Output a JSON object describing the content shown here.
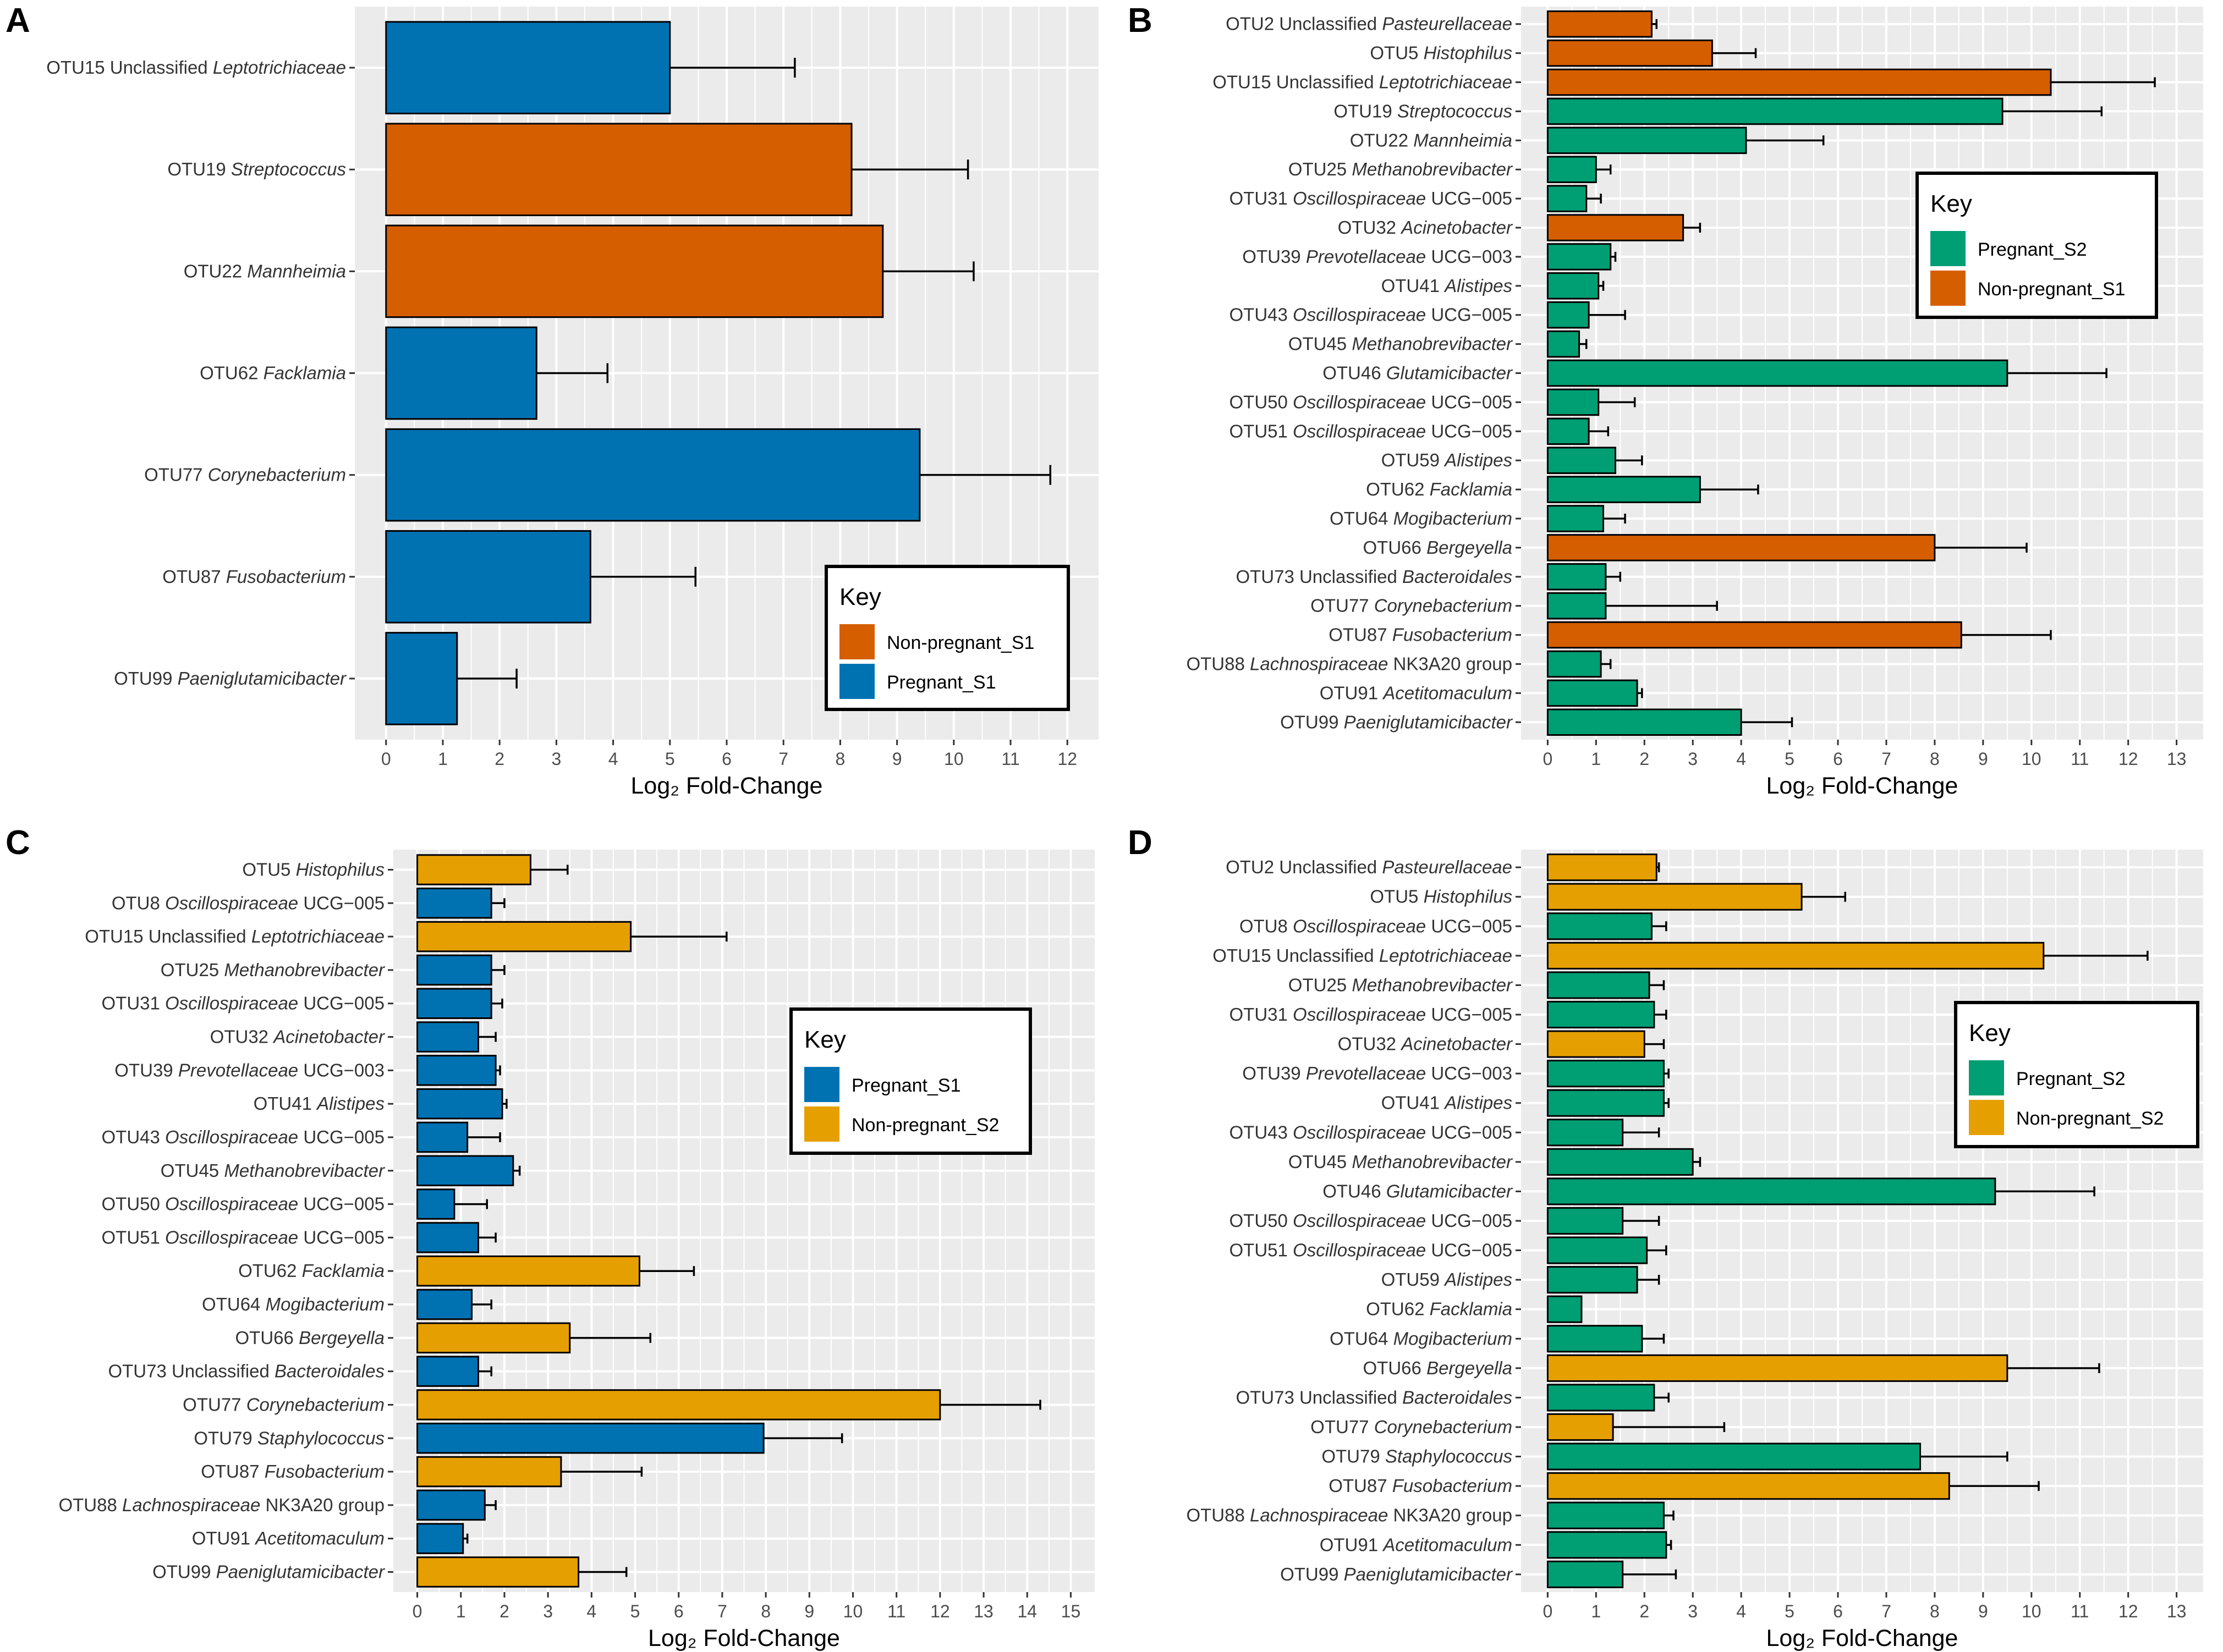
{
  "figure": {
    "xlabel": "Log₂ Fold-Change",
    "legend_title": "Key"
  },
  "colors": {
    "Pregnant_S1": "#0072b2",
    "Non-pregnant_S1": "#d55e00",
    "Pregnant_S2": "#009e73",
    "Non-pregnant_S2": "#e69f00",
    "panel_bg": "#ebebeb",
    "grid": "#ffffff"
  },
  "chart_data": [
    {
      "panel": "A",
      "type": "bar",
      "orientation": "horizontal",
      "title": "",
      "xlabel": "Log₂ Fold-Change",
      "xlim": [
        0,
        12
      ],
      "legend": [
        "Non-pregnant_S1",
        "Pregnant_S1"
      ],
      "legend_position": "lower-right",
      "categories": [
        {
          "otu": "OTU15",
          "prefix": "Unclassified",
          "taxon": "Leptotrichiaceae",
          "suffix": ""
        },
        {
          "otu": "OTU19",
          "prefix": "",
          "taxon": "Streptococcus",
          "suffix": ""
        },
        {
          "otu": "OTU22",
          "prefix": "",
          "taxon": "Mannheimia",
          "suffix": ""
        },
        {
          "otu": "OTU62",
          "prefix": "",
          "taxon": "Facklamia",
          "suffix": ""
        },
        {
          "otu": "OTU77",
          "prefix": "",
          "taxon": "Corynebacterium",
          "suffix": ""
        },
        {
          "otu": "OTU87",
          "prefix": "",
          "taxon": "Fusobacterium",
          "suffix": ""
        },
        {
          "otu": "OTU99",
          "prefix": "",
          "taxon": "Paeniglutamicibacter",
          "suffix": ""
        }
      ],
      "values": [
        5.0,
        8.2,
        8.75,
        2.65,
        9.4,
        3.6,
        1.25
      ],
      "errors": [
        2.2,
        2.05,
        1.6,
        1.25,
        2.3,
        1.85,
        1.05
      ],
      "groups": [
        "Pregnant_S1",
        "Non-pregnant_S1",
        "Non-pregnant_S1",
        "Pregnant_S1",
        "Pregnant_S1",
        "Pregnant_S1",
        "Pregnant_S1"
      ]
    },
    {
      "panel": "B",
      "type": "bar",
      "orientation": "horizontal",
      "title": "",
      "xlabel": "Log₂ Fold-Change",
      "xlim": [
        0,
        13
      ],
      "legend": [
        "Pregnant_S2",
        "Non-pregnant_S1"
      ],
      "legend_position": "middle-right",
      "categories": [
        {
          "otu": "OTU2",
          "prefix": "Unclassified",
          "taxon": "Pasteurellaceae",
          "suffix": ""
        },
        {
          "otu": "OTU5",
          "prefix": "",
          "taxon": "Histophilus",
          "suffix": ""
        },
        {
          "otu": "OTU15",
          "prefix": "Unclassified",
          "taxon": "Leptotrichiaceae",
          "suffix": ""
        },
        {
          "otu": "OTU19",
          "prefix": "",
          "taxon": "Streptococcus",
          "suffix": ""
        },
        {
          "otu": "OTU22",
          "prefix": "",
          "taxon": "Mannheimia",
          "suffix": ""
        },
        {
          "otu": "OTU25",
          "prefix": "",
          "taxon": "Methanobrevibacter",
          "suffix": ""
        },
        {
          "otu": "OTU31",
          "prefix": "",
          "taxon": "Oscillospiraceae",
          "suffix": "UCG−005"
        },
        {
          "otu": "OTU32",
          "prefix": "",
          "taxon": "Acinetobacter",
          "suffix": ""
        },
        {
          "otu": "OTU39",
          "prefix": "",
          "taxon": "Prevotellaceae",
          "suffix": "UCG−003"
        },
        {
          "otu": "OTU41",
          "prefix": "",
          "taxon": "Alistipes",
          "suffix": ""
        },
        {
          "otu": "OTU43",
          "prefix": "",
          "taxon": "Oscillospiraceae",
          "suffix": "UCG−005"
        },
        {
          "otu": "OTU45",
          "prefix": "",
          "taxon": "Methanobrevibacter",
          "suffix": ""
        },
        {
          "otu": "OTU46",
          "prefix": "",
          "taxon": "Glutamicibacter",
          "suffix": ""
        },
        {
          "otu": "OTU50",
          "prefix": "",
          "taxon": "Oscillospiraceae",
          "suffix": "UCG−005"
        },
        {
          "otu": "OTU51",
          "prefix": "",
          "taxon": "Oscillospiraceae",
          "suffix": "UCG−005"
        },
        {
          "otu": "OTU59",
          "prefix": "",
          "taxon": "Alistipes",
          "suffix": ""
        },
        {
          "otu": "OTU62",
          "prefix": "",
          "taxon": "Facklamia",
          "suffix": ""
        },
        {
          "otu": "OTU64",
          "prefix": "",
          "taxon": "Mogibacterium",
          "suffix": ""
        },
        {
          "otu": "OTU66",
          "prefix": "",
          "taxon": "Bergeyella",
          "suffix": ""
        },
        {
          "otu": "OTU73",
          "prefix": "Unclassified",
          "taxon": "Bacteroidales",
          "suffix": ""
        },
        {
          "otu": "OTU77",
          "prefix": "",
          "taxon": "Corynebacterium",
          "suffix": ""
        },
        {
          "otu": "OTU87",
          "prefix": "",
          "taxon": "Fusobacterium",
          "suffix": ""
        },
        {
          "otu": "OTU88",
          "prefix": "",
          "taxon": "Lachnospiraceae",
          "suffix": "NK3A20 group"
        },
        {
          "otu": "OTU91",
          "prefix": "",
          "taxon": "Acetitomaculum",
          "suffix": ""
        },
        {
          "otu": "OTU99",
          "prefix": "",
          "taxon": "Paeniglutamicibacter",
          "suffix": ""
        }
      ],
      "values": [
        2.15,
        3.4,
        10.4,
        9.4,
        4.1,
        1.0,
        0.8,
        2.8,
        1.3,
        1.05,
        0.85,
        0.65,
        9.5,
        1.05,
        0.85,
        1.4,
        3.15,
        1.15,
        8.0,
        1.2,
        1.2,
        8.55,
        1.1,
        1.85,
        4.0
      ],
      "errors": [
        0.1,
        0.9,
        2.15,
        2.05,
        1.6,
        0.3,
        0.3,
        0.35,
        0.1,
        0.1,
        0.75,
        0.15,
        2.05,
        0.75,
        0.4,
        0.55,
        1.2,
        0.45,
        1.9,
        0.3,
        2.3,
        1.85,
        0.2,
        0.1,
        1.05
      ],
      "groups": [
        "Non-pregnant_S1",
        "Non-pregnant_S1",
        "Non-pregnant_S1",
        "Pregnant_S2",
        "Pregnant_S2",
        "Pregnant_S2",
        "Pregnant_S2",
        "Non-pregnant_S1",
        "Pregnant_S2",
        "Pregnant_S2",
        "Pregnant_S2",
        "Pregnant_S2",
        "Pregnant_S2",
        "Pregnant_S2",
        "Pregnant_S2",
        "Pregnant_S2",
        "Pregnant_S2",
        "Pregnant_S2",
        "Non-pregnant_S1",
        "Pregnant_S2",
        "Pregnant_S2",
        "Non-pregnant_S1",
        "Pregnant_S2",
        "Pregnant_S2",
        "Pregnant_S2"
      ]
    },
    {
      "panel": "C",
      "type": "bar",
      "orientation": "horizontal",
      "title": "",
      "xlabel": "Log₂ Fold-Change",
      "xlim": [
        0,
        15
      ],
      "legend": [
        "Pregnant_S1",
        "Non-pregnant_S2"
      ],
      "legend_position": "middle-right",
      "categories": [
        {
          "otu": "OTU5",
          "prefix": "",
          "taxon": "Histophilus",
          "suffix": ""
        },
        {
          "otu": "OTU8",
          "prefix": "",
          "taxon": "Oscillospiraceae",
          "suffix": "UCG−005"
        },
        {
          "otu": "OTU15",
          "prefix": "Unclassified",
          "taxon": "Leptotrichiaceae",
          "suffix": ""
        },
        {
          "otu": "OTU25",
          "prefix": "",
          "taxon": "Methanobrevibacter",
          "suffix": ""
        },
        {
          "otu": "OTU31",
          "prefix": "",
          "taxon": "Oscillospiraceae",
          "suffix": "UCG−005"
        },
        {
          "otu": "OTU32",
          "prefix": "",
          "taxon": "Acinetobacter",
          "suffix": ""
        },
        {
          "otu": "OTU39",
          "prefix": "",
          "taxon": "Prevotellaceae",
          "suffix": "UCG−003"
        },
        {
          "otu": "OTU41",
          "prefix": "",
          "taxon": "Alistipes",
          "suffix": ""
        },
        {
          "otu": "OTU43",
          "prefix": "",
          "taxon": "Oscillospiraceae",
          "suffix": "UCG−005"
        },
        {
          "otu": "OTU45",
          "prefix": "",
          "taxon": "Methanobrevibacter",
          "suffix": ""
        },
        {
          "otu": "OTU50",
          "prefix": "",
          "taxon": "Oscillospiraceae",
          "suffix": "UCG−005"
        },
        {
          "otu": "OTU51",
          "prefix": "",
          "taxon": "Oscillospiraceae",
          "suffix": "UCG−005"
        },
        {
          "otu": "OTU62",
          "prefix": "",
          "taxon": "Facklamia",
          "suffix": ""
        },
        {
          "otu": "OTU64",
          "prefix": "",
          "taxon": "Mogibacterium",
          "suffix": ""
        },
        {
          "otu": "OTU66",
          "prefix": "",
          "taxon": "Bergeyella",
          "suffix": ""
        },
        {
          "otu": "OTU73",
          "prefix": "Unclassified",
          "taxon": "Bacteroidales",
          "suffix": ""
        },
        {
          "otu": "OTU77",
          "prefix": "",
          "taxon": "Corynebacterium",
          "suffix": ""
        },
        {
          "otu": "OTU79",
          "prefix": "",
          "taxon": "Staphylococcus",
          "suffix": ""
        },
        {
          "otu": "OTU87",
          "prefix": "",
          "taxon": "Fusobacterium",
          "suffix": ""
        },
        {
          "otu": "OTU88",
          "prefix": "",
          "taxon": "Lachnospiraceae",
          "suffix": "NK3A20 group"
        },
        {
          "otu": "OTU91",
          "prefix": "",
          "taxon": "Acetitomaculum",
          "suffix": ""
        },
        {
          "otu": "OTU99",
          "prefix": "",
          "taxon": "Paeniglutamicibacter",
          "suffix": ""
        }
      ],
      "values": [
        2.6,
        1.7,
        4.9,
        1.7,
        1.7,
        1.4,
        1.8,
        1.95,
        1.15,
        2.2,
        0.85,
        1.4,
        5.1,
        1.25,
        3.5,
        1.4,
        12.0,
        7.95,
        3.3,
        1.55,
        1.05,
        3.7
      ],
      "errors": [
        0.85,
        0.3,
        2.2,
        0.3,
        0.25,
        0.4,
        0.1,
        0.1,
        0.75,
        0.15,
        0.75,
        0.4,
        1.25,
        0.45,
        1.85,
        0.3,
        2.3,
        1.8,
        1.85,
        0.25,
        0.1,
        1.1
      ],
      "groups": [
        "Non-pregnant_S2",
        "Pregnant_S1",
        "Non-pregnant_S2",
        "Pregnant_S1",
        "Pregnant_S1",
        "Pregnant_S1",
        "Pregnant_S1",
        "Pregnant_S1",
        "Pregnant_S1",
        "Pregnant_S1",
        "Pregnant_S1",
        "Pregnant_S1",
        "Non-pregnant_S2",
        "Pregnant_S1",
        "Non-pregnant_S2",
        "Pregnant_S1",
        "Non-pregnant_S2",
        "Pregnant_S1",
        "Non-pregnant_S2",
        "Pregnant_S1",
        "Pregnant_S1",
        "Non-pregnant_S2"
      ]
    },
    {
      "panel": "D",
      "type": "bar",
      "orientation": "horizontal",
      "title": "",
      "xlabel": "Log₂ Fold-Change",
      "xlim": [
        0,
        13
      ],
      "legend": [
        "Pregnant_S2",
        "Non-pregnant_S2"
      ],
      "legend_position": "middle-right",
      "categories": [
        {
          "otu": "OTU2",
          "prefix": "Unclassified",
          "taxon": "Pasteurellaceae",
          "suffix": ""
        },
        {
          "otu": "OTU5",
          "prefix": "",
          "taxon": "Histophilus",
          "suffix": ""
        },
        {
          "otu": "OTU8",
          "prefix": "",
          "taxon": "Oscillospiraceae",
          "suffix": "UCG−005"
        },
        {
          "otu": "OTU15",
          "prefix": "Unclassified",
          "taxon": "Leptotrichiaceae",
          "suffix": ""
        },
        {
          "otu": "OTU25",
          "prefix": "",
          "taxon": "Methanobrevibacter",
          "suffix": ""
        },
        {
          "otu": "OTU31",
          "prefix": "",
          "taxon": "Oscillospiraceae",
          "suffix": "UCG−005"
        },
        {
          "otu": "OTU32",
          "prefix": "",
          "taxon": "Acinetobacter",
          "suffix": ""
        },
        {
          "otu": "OTU39",
          "prefix": "",
          "taxon": "Prevotellaceae",
          "suffix": "UCG−003"
        },
        {
          "otu": "OTU41",
          "prefix": "",
          "taxon": "Alistipes",
          "suffix": ""
        },
        {
          "otu": "OTU43",
          "prefix": "",
          "taxon": "Oscillospiraceae",
          "suffix": "UCG−005"
        },
        {
          "otu": "OTU45",
          "prefix": "",
          "taxon": "Methanobrevibacter",
          "suffix": ""
        },
        {
          "otu": "OTU46",
          "prefix": "",
          "taxon": "Glutamicibacter",
          "suffix": ""
        },
        {
          "otu": "OTU50",
          "prefix": "",
          "taxon": "Oscillospiraceae",
          "suffix": "UCG−005"
        },
        {
          "otu": "OTU51",
          "prefix": "",
          "taxon": "Oscillospiraceae",
          "suffix": "UCG−005"
        },
        {
          "otu": "OTU59",
          "prefix": "",
          "taxon": "Alistipes",
          "suffix": ""
        },
        {
          "otu": "OTU62",
          "prefix": "",
          "taxon": "Facklamia",
          "suffix": ""
        },
        {
          "otu": "OTU64",
          "prefix": "",
          "taxon": "Mogibacterium",
          "suffix": ""
        },
        {
          "otu": "OTU66",
          "prefix": "",
          "taxon": "Bergeyella",
          "suffix": ""
        },
        {
          "otu": "OTU73",
          "prefix": "Unclassified",
          "taxon": "Bacteroidales",
          "suffix": ""
        },
        {
          "otu": "OTU77",
          "prefix": "",
          "taxon": "Corynebacterium",
          "suffix": ""
        },
        {
          "otu": "OTU79",
          "prefix": "",
          "taxon": "Staphylococcus",
          "suffix": ""
        },
        {
          "otu": "OTU87",
          "prefix": "",
          "taxon": "Fusobacterium",
          "suffix": ""
        },
        {
          "otu": "OTU88",
          "prefix": "",
          "taxon": "Lachnospiraceae",
          "suffix": "NK3A20 group"
        },
        {
          "otu": "OTU91",
          "prefix": "",
          "taxon": "Acetitomaculum",
          "suffix": ""
        },
        {
          "otu": "OTU99",
          "prefix": "",
          "taxon": "Paeniglutamicibacter",
          "suffix": ""
        }
      ],
      "values": [
        2.25,
        5.25,
        2.15,
        10.25,
        2.1,
        2.2,
        2.0,
        2.4,
        2.4,
        1.55,
        3.0,
        9.25,
        1.55,
        2.05,
        1.85,
        0.7,
        1.95,
        9.5,
        2.2,
        1.35,
        7.7,
        8.3,
        2.4,
        2.45,
        1.55
      ],
      "errors": [
        0.05,
        0.9,
        0.3,
        2.15,
        0.3,
        0.25,
        0.4,
        0.1,
        0.1,
        0.75,
        0.15,
        2.05,
        0.75,
        0.4,
        0.45,
        0.0,
        0.45,
        1.9,
        0.3,
        2.3,
        1.8,
        1.85,
        0.2,
        0.1,
        1.1
      ],
      "groups": [
        "Non-pregnant_S2",
        "Non-pregnant_S2",
        "Pregnant_S2",
        "Non-pregnant_S2",
        "Pregnant_S2",
        "Pregnant_S2",
        "Non-pregnant_S2",
        "Pregnant_S2",
        "Pregnant_S2",
        "Pregnant_S2",
        "Pregnant_S2",
        "Pregnant_S2",
        "Pregnant_S2",
        "Pregnant_S2",
        "Pregnant_S2",
        "Pregnant_S2",
        "Pregnant_S2",
        "Non-pregnant_S2",
        "Pregnant_S2",
        "Non-pregnant_S2",
        "Pregnant_S2",
        "Non-pregnant_S2",
        "Pregnant_S2",
        "Pregnant_S2",
        "Pregnant_S2"
      ]
    }
  ]
}
